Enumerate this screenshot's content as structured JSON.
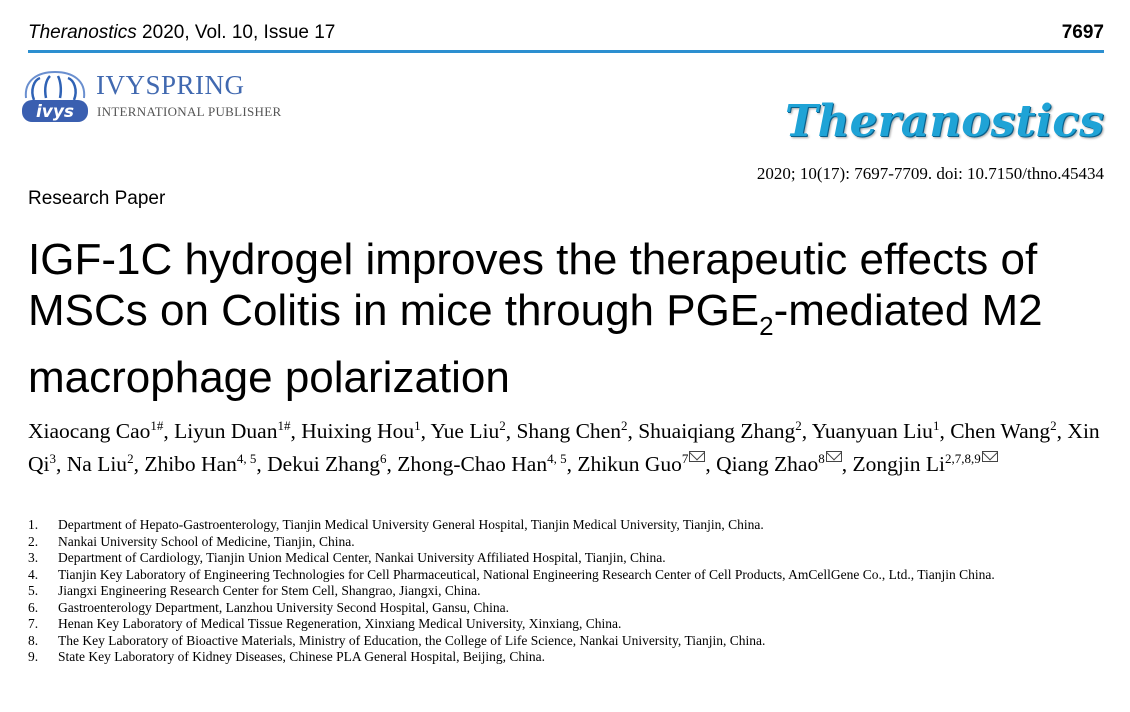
{
  "header": {
    "journal": "Theranostics",
    "volume_info": " 2020, Vol. 10, Issue 17",
    "page_number": "7697",
    "rule_color": "#2c8fd0"
  },
  "publisher": {
    "logo_icon": "ivyspring-logo-icon",
    "name": "IVYSPRING",
    "subtitle": "INTERNATIONAL PUBLISHER"
  },
  "journal_logo": "Theranostics",
  "citation": "2020; 10(17): 7697-7709. doi: 10.7150/thno.45434",
  "article_type": "Research Paper",
  "title": {
    "part1": "IGF-1C hydrogel improves the therapeutic effects of MSCs on Colitis in mice through PGE",
    "sub": "2",
    "part2": "-mediated M2 macrophage polarization"
  },
  "authors": [
    {
      "name": "Xiaocang Cao",
      "sup": "1#"
    },
    {
      "name": "Liyun Duan",
      "sup": "1#"
    },
    {
      "name": "Huixing Hou",
      "sup": "1"
    },
    {
      "name": "Yue Liu",
      "sup": "2"
    },
    {
      "name": "Shang Chen",
      "sup": "2"
    },
    {
      "name": "Shuaiqiang Zhang",
      "sup": "2"
    },
    {
      "name": "Yuanyuan Liu",
      "sup": "1"
    },
    {
      "name": "Chen Wang",
      "sup": "2"
    },
    {
      "name": "Xin Qi",
      "sup": "3"
    },
    {
      "name": "Na Liu",
      "sup": "2"
    },
    {
      "name": "Zhibo Han",
      "sup": "4, 5"
    },
    {
      "name": "Dekui Zhang",
      "sup": "6"
    },
    {
      "name": "Zhong-Chao Han",
      "sup": "4, 5"
    },
    {
      "name": "Zhikun Guo",
      "sup": "7",
      "corresponding": true
    },
    {
      "name": "Qiang Zhao",
      "sup": "8",
      "corresponding": true
    },
    {
      "name": "Zongjin Li",
      "sup": "2,7,8,9",
      "corresponding": true
    }
  ],
  "affiliations": [
    {
      "num": "1.",
      "text": "Department of Hepato-Gastroenterology, Tianjin Medical University General Hospital, Tianjin Medical University, Tianjin, China."
    },
    {
      "num": "2.",
      "text": "Nankai University School of Medicine, Tianjin, China."
    },
    {
      "num": "3.",
      "text": "Department of Cardiology, Tianjin Union Medical Center, Nankai University Affiliated Hospital, Tianjin, China."
    },
    {
      "num": "4.",
      "text": "Tianjin Key Laboratory of Engineering Technologies for Cell Pharmaceutical, National Engineering Research Center of Cell Products, AmCellGene Co., Ltd., Tianjin China."
    },
    {
      "num": "5.",
      "text": "Jiangxi Engineering Research Center for Stem Cell, Shangrao, Jiangxi, China."
    },
    {
      "num": "6.",
      "text": "Gastroenterology Department, Lanzhou University Second Hospital, Gansu, China."
    },
    {
      "num": "7.",
      "text": "Henan Key Laboratory of Medical Tissue Regeneration, Xinxiang Medical University, Xinxiang, China."
    },
    {
      "num": "8.",
      "text": "The Key Laboratory of Bioactive Materials, Ministry of Education, the College of Life Science, Nankai University, Tianjin, China."
    },
    {
      "num": "9.",
      "text": "State Key Laboratory of Kidney Diseases, Chinese PLA General Hospital, Beijing, China."
    }
  ]
}
